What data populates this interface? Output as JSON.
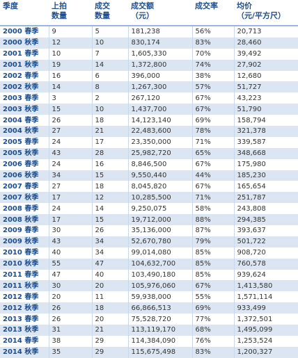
{
  "table": {
    "header": [
      "季度",
      "上拍\n数量",
      "成交\n数量",
      "成交额\n（元）",
      "成交率",
      "均价\n（元/平方尺）"
    ],
    "rows": [
      [
        "2000 春季",
        "9",
        "5",
        "181,238",
        "56%",
        "20,713"
      ],
      [
        "2000 秋季",
        "12",
        "10",
        "830,174",
        "83%",
        "28,460"
      ],
      [
        "2001 春季",
        "10",
        "7",
        "1,605,330",
        "70%",
        "39,492"
      ],
      [
        "2001 秋季",
        "19",
        "14",
        "1,372,800",
        "74%",
        "27,902"
      ],
      [
        "2002 春季",
        "16",
        "6",
        "396,000",
        "38%",
        "12,680"
      ],
      [
        "2002 秋季",
        "14",
        "8",
        "1,267,300",
        "57%",
        "51,727"
      ],
      [
        "2003 春季",
        "3",
        "2",
        "267,120",
        "67%",
        "43,223"
      ],
      [
        "2003 秋季",
        "15",
        "10",
        "1,437,700",
        "67%",
        "51,790"
      ],
      [
        "2004 春季",
        "26",
        "18",
        "14,123,140",
        "69%",
        "158,794"
      ],
      [
        "2004 秋季",
        "27",
        "21",
        "22,483,600",
        "78%",
        "321,378"
      ],
      [
        "2005 春季",
        "24",
        "17",
        "23,350,000",
        "71%",
        "339,587"
      ],
      [
        "2005 秋季",
        "43",
        "28",
        "25,982,720",
        "65%",
        "348,668"
      ],
      [
        "2006 春季",
        "24",
        "16",
        "8,846,500",
        "67%",
        "175,980"
      ],
      [
        "2006 秋季",
        "34",
        "15",
        "9,550,440",
        "44%",
        "185,230"
      ],
      [
        "2007 春季",
        "27",
        "18",
        "8,045,820",
        "67%",
        "165,654"
      ],
      [
        "2007 秋季",
        "17",
        "12",
        "10,285,500",
        "71%",
        "251,787"
      ],
      [
        "2008 春季",
        "24",
        "14",
        "9,250,075",
        "58%",
        "243,808"
      ],
      [
        "2008 秋季",
        "17",
        "15",
        "19,712,000",
        "88%",
        "294,385"
      ],
      [
        "2009 春季",
        "30",
        "26",
        "35,136,000",
        "87%",
        "393,637"
      ],
      [
        "2009 秋季",
        "43",
        "34",
        "52,670,780",
        "79%",
        "501,722"
      ],
      [
        "2010 春季",
        "40",
        "34",
        "99,014,080",
        "85%",
        "908,720"
      ],
      [
        "2010 秋季",
        "55",
        "47",
        "104,632,700",
        "85%",
        "760,578"
      ],
      [
        "2011 春季",
        "47",
        "40",
        "103,490,180",
        "85%",
        "939,624"
      ],
      [
        "2011 秋季",
        "30",
        "20",
        "105,976,060",
        "67%",
        "1,413,580"
      ],
      [
        "2012 春季",
        "20",
        "11",
        "59,938,000",
        "55%",
        "1,571,114"
      ],
      [
        "2012 秋季",
        "26",
        "18",
        "66,866,513",
        "69%",
        "933,499"
      ],
      [
        "2013 春季",
        "26",
        "20",
        "75,528,720",
        "77%",
        "1,372,501"
      ],
      [
        "2013 秋季",
        "31",
        "21",
        "113,119,170",
        "68%",
        "1,495,099"
      ],
      [
        "2014 春季",
        "38",
        "29",
        "114,384,090",
        "76%",
        "1,253,524"
      ],
      [
        "2014 秋季",
        "35",
        "29",
        "115,675,498",
        "83%",
        "1,200,327"
      ]
    ]
  }
}
